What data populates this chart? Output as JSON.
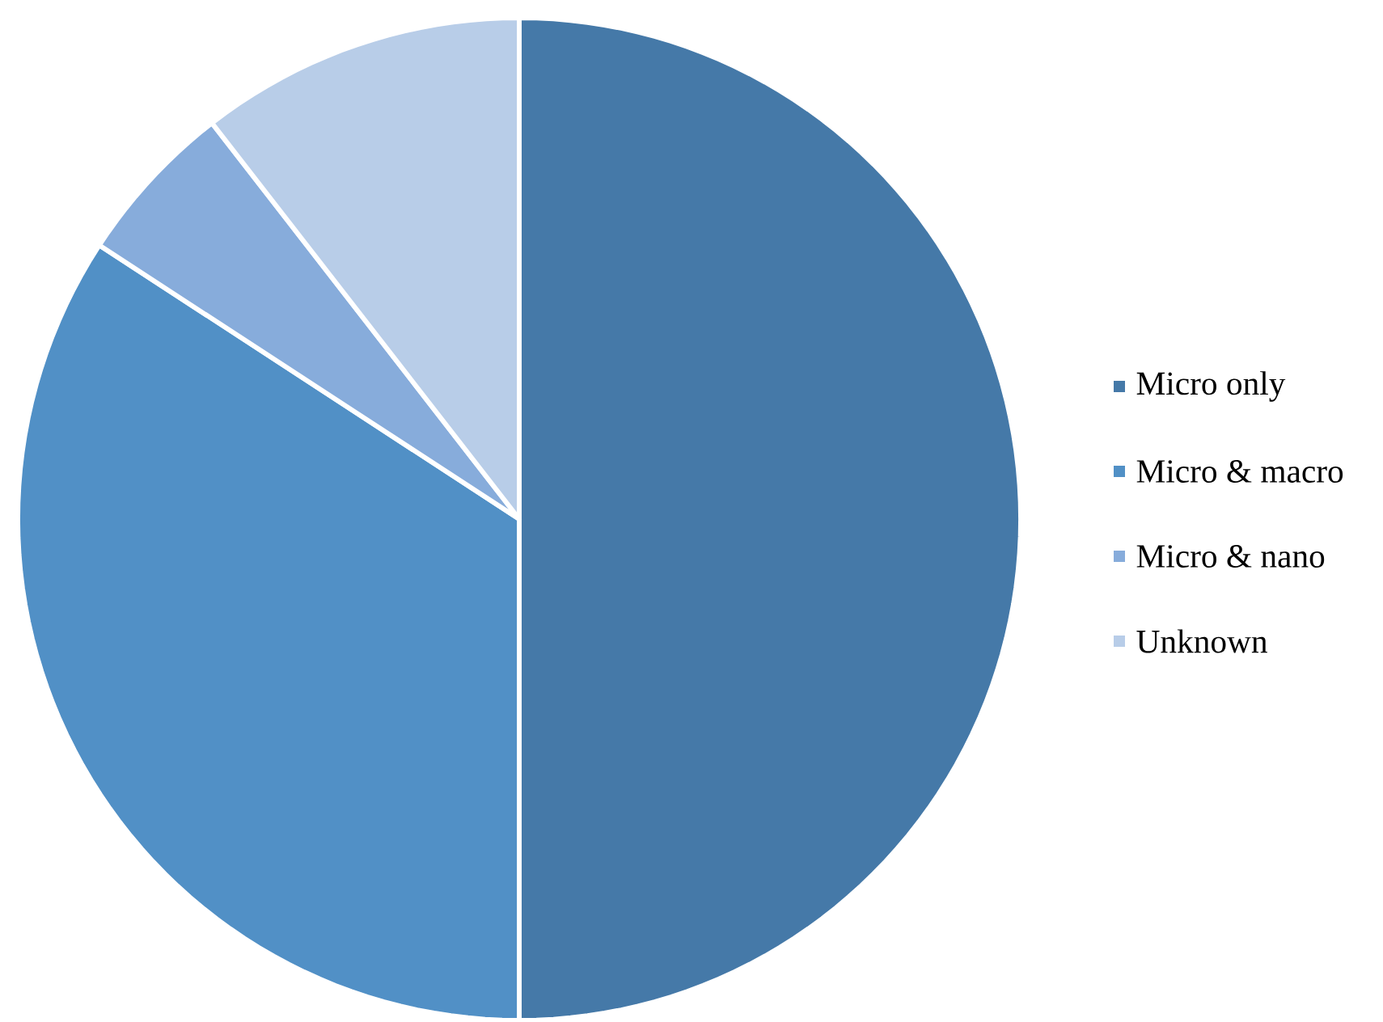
{
  "chart_data": {
    "type": "pie",
    "categories": [
      "Micro only",
      "Micro & macro",
      "Micro & nano",
      "Unknown"
    ],
    "values": [
      50,
      34.2,
      5.3,
      10.5
    ],
    "colors": [
      "#4579a8",
      "#5190c6",
      "#87acdb",
      "#b8cde8"
    ],
    "legend": "right"
  }
}
